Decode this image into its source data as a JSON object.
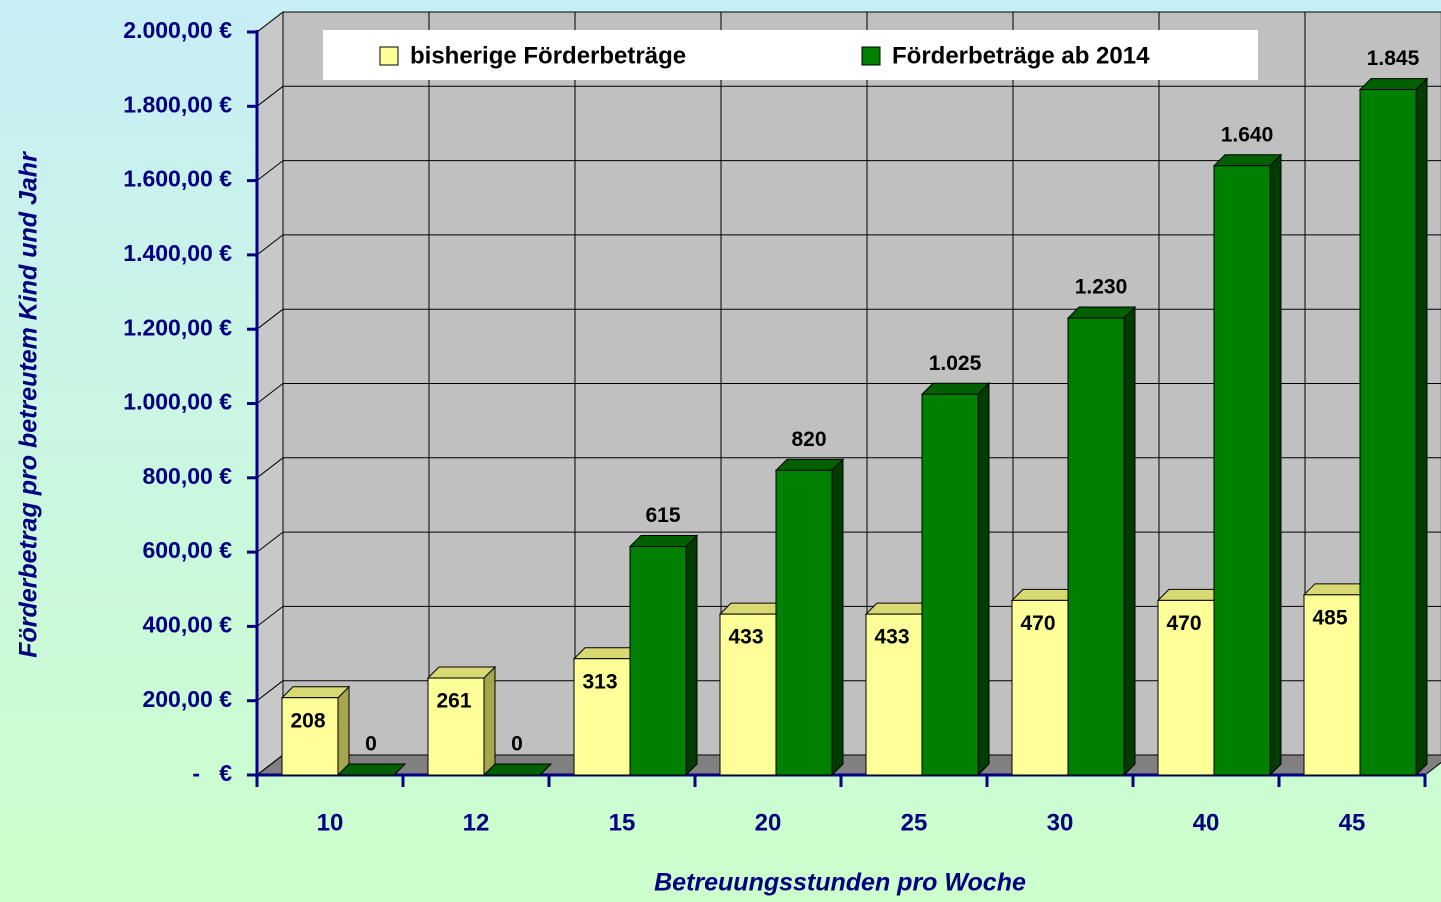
{
  "chart_data": {
    "type": "bar3d",
    "y_axis_label": "Förderbetrag pro betreutem Kind und Jahr",
    "x_axis_label": "Betreuungsstunden pro Woche",
    "categories": [
      "10",
      "12",
      "15",
      "20",
      "25",
      "30",
      "40",
      "45"
    ],
    "series": [
      {
        "name": "bisherige Förderbeträge",
        "color": "#ffff99",
        "values": [
          208,
          261,
          313,
          433,
          433,
          470,
          470,
          485
        ]
      },
      {
        "name": "Förderbeträge ab 2014",
        "color": "#008000",
        "values": [
          0,
          0,
          615,
          820,
          1025,
          1230,
          1640,
          1845
        ],
        "value_labels": [
          "0",
          "0",
          "615",
          "820",
          "1.025",
          "1.230",
          "1.640",
          "1.845"
        ]
      }
    ],
    "ylim": [
      0,
      2000
    ],
    "yticks": [
      {
        "value": 0,
        "label": "-   €"
      },
      {
        "value": 200,
        "label": "200,00 €"
      },
      {
        "value": 400,
        "label": "400,00 €"
      },
      {
        "value": 600,
        "label": "600,00 €"
      },
      {
        "value": 800,
        "label": "800,00 €"
      },
      {
        "value": 1000,
        "label": "1.000,00 €"
      },
      {
        "value": 1200,
        "label": "1.200,00 €"
      },
      {
        "value": 1400,
        "label": "1.400,00 €"
      },
      {
        "value": 1600,
        "label": "1.600,00 €"
      },
      {
        "value": 1800,
        "label": "1.800,00 €"
      },
      {
        "value": 2000,
        "label": "2.000,00 €"
      }
    ],
    "grid": true,
    "legend": "top"
  }
}
